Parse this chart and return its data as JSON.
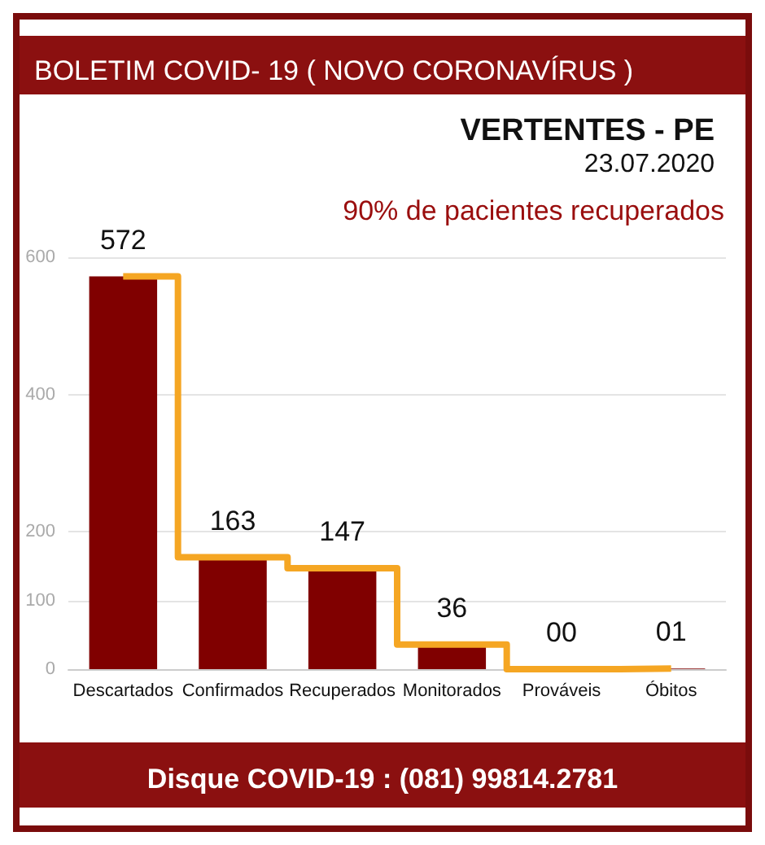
{
  "chart_data": {
    "type": "bar",
    "title": "BOLETIM COVID- 19 ( NOVO CORONAVÍRUS )",
    "subtitle": "VERTENTES - PE\n23.07.2020",
    "annotations": [
      "90% de pacientes recuperados",
      "Disque COVID-19 : (081) 99814.2781"
    ],
    "categories": [
      "Descartados",
      "Confirmados",
      "Recuperados",
      "Monitorados",
      "Prováveis",
      "Óbitos"
    ],
    "series": [
      {
        "color": "#800000",
        "values": [
          572,
          163,
          147,
          36,
          0,
          1
        ],
        "value_labels": [
          "572",
          "163",
          "147",
          "36",
          "00",
          "01"
        ]
      },
      {
        "type": "step",
        "color": "#f5a623",
        "values": [
          572,
          163,
          147,
          36,
          0,
          1
        ]
      }
    ],
    "ylim": [
      0,
      600
    ],
    "yticks": [
      0,
      100,
      200,
      400,
      600
    ],
    "grid": "y"
  }
}
